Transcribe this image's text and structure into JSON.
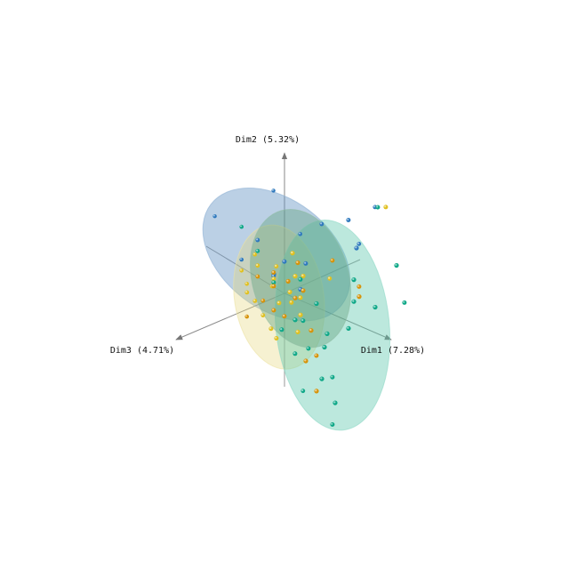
{
  "chart_data": {
    "type": "scatter",
    "title": "",
    "axes": [
      {
        "id": "x",
        "label": "Dim1 (7.28%)"
      },
      {
        "id": "y",
        "label": "Dim2 (5.32%)"
      },
      {
        "id": "z",
        "label": "Dim3 (4.71%)"
      }
    ],
    "grid": false,
    "legend": "none",
    "colors": {
      "blue": "#2f79bd",
      "yellow": "#e0c020",
      "teal": "#10a888",
      "orange": "#d6930a",
      "axis": "#8a8a8a"
    },
    "ellipses": [
      {
        "group": "blue",
        "fill": "#5d8fc0",
        "opacity": 0.42,
        "center": [
          -0.05,
          0.55,
          0.1
        ],
        "radii": [
          1.3,
          0.8,
          0.45
        ]
      },
      {
        "group": "yellow",
        "fill": "#e4d67a",
        "opacity": 0.35,
        "center": [
          -0.05,
          -0.05,
          0.05
        ],
        "radii": [
          0.75,
          0.95,
          0.4
        ]
      },
      {
        "group": "teal",
        "fill": "#60c8ad",
        "opacity": 0.42,
        "center": [
          0.9,
          -0.15,
          0.0
        ],
        "radii": [
          0.95,
          1.4,
          0.5
        ]
      },
      {
        "group": "green",
        "fill": "#5fa07d",
        "opacity": 0.4,
        "center": [
          0.3,
          0.3,
          0.0
        ],
        "radii": [
          0.85,
          0.9,
          0.4
        ]
      }
    ],
    "points": {
      "blue": [
        [
          1.9,
          1.85,
          0.2
        ],
        [
          0.2,
          1.6,
          0.4
        ],
        [
          1.3,
          1.45,
          0.1
        ],
        [
          0.9,
          1.3,
          0.2
        ],
        [
          1.35,
          1.05,
          0.0
        ],
        [
          -0.9,
          0.9,
          0.4
        ],
        [
          0.6,
          1.1,
          0.3
        ],
        [
          -0.3,
          0.7,
          0.2
        ],
        [
          0.1,
          0.5,
          0.1
        ],
        [
          -0.2,
          0.2,
          0.0
        ],
        [
          0.3,
          0.15,
          0.0
        ],
        [
          -0.5,
          0.4,
          0.3
        ],
        [
          0.5,
          0.6,
          0.1
        ],
        [
          1.6,
          1.25,
          0.2
        ],
        [
          0.0,
          0.3,
          0.2
        ]
      ],
      "yellow": [
        [
          -0.3,
          0.35,
          0.2
        ],
        [
          -0.1,
          0.2,
          0.1
        ],
        [
          0.2,
          0.3,
          0.0
        ],
        [
          -0.4,
          0.1,
          0.3
        ],
        [
          0.0,
          -0.1,
          0.1
        ],
        [
          0.3,
          -0.2,
          0.0
        ],
        [
          -0.2,
          -0.3,
          0.2
        ],
        [
          0.1,
          0.05,
          0.0
        ],
        [
          -0.5,
          0.25,
          0.3
        ],
        [
          0.4,
          0.1,
          0.1
        ],
        [
          -0.15,
          -0.5,
          0.1
        ],
        [
          0.05,
          0.45,
          0.2
        ],
        [
          -0.35,
          -0.15,
          0.2
        ],
        [
          0.25,
          -0.45,
          0.0
        ],
        [
          2.0,
          1.85,
          0.1
        ],
        [
          1.05,
          0.6,
          0.2
        ],
        [
          -0.05,
          -0.6,
          0.1
        ],
        [
          0.15,
          0.6,
          0.0
        ],
        [
          -0.25,
          0.55,
          0.3
        ],
        [
          0.35,
          0.35,
          0.0
        ],
        [
          -0.45,
          -0.05,
          0.25
        ],
        [
          0.18,
          -0.05,
          0.05
        ],
        [
          -0.08,
          0.12,
          0.15
        ]
      ],
      "teal": [
        [
          1.85,
          1.8,
          0.1
        ],
        [
          2.1,
          1.05,
          0.0
        ],
        [
          2.35,
          0.65,
          0.1
        ],
        [
          1.7,
          0.35,
          0.0
        ],
        [
          1.3,
          0.6,
          0.0
        ],
        [
          0.8,
          -0.3,
          0.0
        ],
        [
          0.55,
          -0.55,
          0.1
        ],
        [
          0.7,
          -0.95,
          0.0
        ],
        [
          0.95,
          -1.2,
          0.0
        ],
        [
          1.0,
          -1.45,
          0.1
        ],
        [
          0.55,
          -1.1,
          0.2
        ],
        [
          0.3,
          -0.7,
          0.1
        ],
        [
          1.2,
          -0.1,
          0.0
        ],
        [
          -0.5,
          0.85,
          0.3
        ],
        [
          -0.3,
          0.55,
          0.2
        ],
        [
          0.2,
          -0.3,
          0.0
        ],
        [
          0.45,
          -0.2,
          0.1
        ],
        [
          0.05,
          -0.45,
          0.1
        ],
        [
          1.0,
          -0.8,
          0.1
        ],
        [
          0.75,
          -0.5,
          0.0
        ],
        [
          1.3,
          0.3,
          0.0
        ],
        [
          -0.1,
          0.15,
          0.1
        ],
        [
          0.4,
          0.35,
          0.1
        ],
        [
          0.6,
          0.05,
          0.0
        ]
      ],
      "orange": [
        [
          -0.1,
          0.1,
          0.1
        ],
        [
          0.2,
          0.0,
          0.0
        ],
        [
          -0.3,
          0.2,
          0.2
        ],
        [
          0.1,
          -0.25,
          0.1
        ],
        [
          0.35,
          0.15,
          0.0
        ],
        [
          -0.2,
          -0.1,
          0.2
        ],
        [
          0.5,
          -0.35,
          0.0
        ],
        [
          1.5,
          0.6,
          0.1
        ],
        [
          1.4,
          0.4,
          0.0
        ],
        [
          1.0,
          0.8,
          0.1
        ],
        [
          0.4,
          -0.8,
          0.0
        ],
        [
          0.6,
          -1.15,
          0.0
        ],
        [
          0.0,
          0.35,
          0.2
        ],
        [
          -0.4,
          -0.35,
          0.3
        ],
        [
          0.25,
          0.5,
          0.0
        ],
        [
          0.7,
          -0.6,
          0.1
        ],
        [
          -0.05,
          -0.2,
          0.15
        ],
        [
          0.12,
          0.22,
          0.05
        ]
      ]
    }
  }
}
